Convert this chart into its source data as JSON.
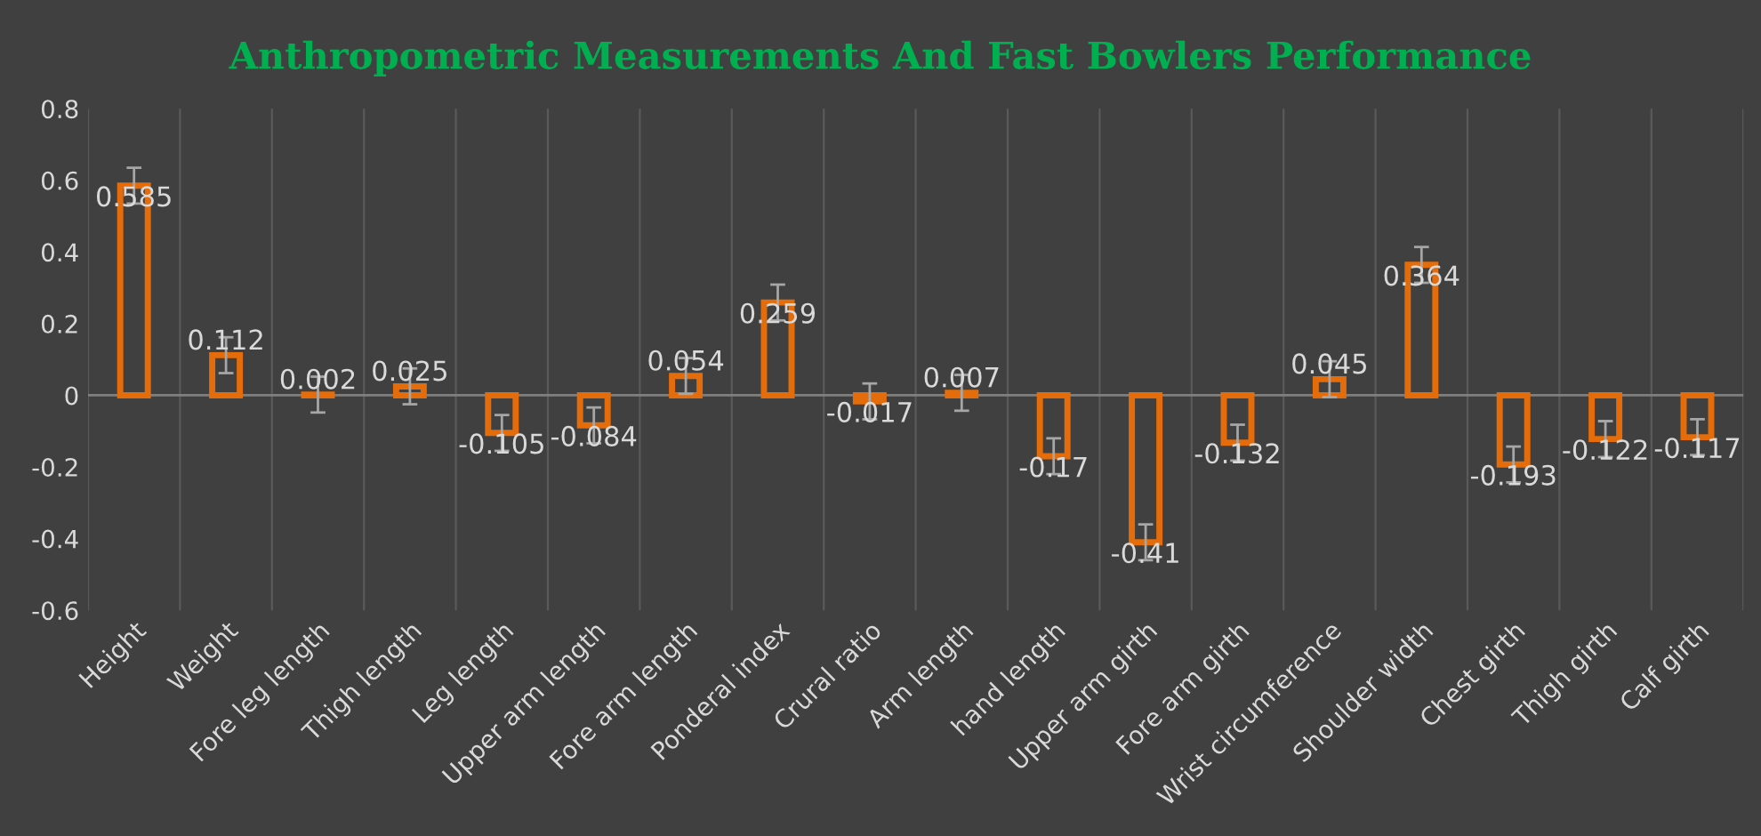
{
  "chart_data": {
    "type": "bar",
    "title": "Anthropometric Measurements And Fast Bowlers Performance",
    "categories": [
      "Height",
      "Weight",
      "Fore leg length",
      "Thigh length",
      "Leg length",
      "Upper arm length",
      "Fore arm length",
      "Ponderal index",
      "Crural ratio",
      "Arm length",
      "hand length",
      "Upper arm girth",
      "Fore arm girth",
      "Wrist circumference",
      "Shoulder width",
      "Chest girth",
      "Thigh girth",
      "Calf girth"
    ],
    "values": [
      0.585,
      0.112,
      0.002,
      0.025,
      -0.105,
      -0.084,
      0.054,
      0.259,
      -0.017,
      0.007,
      -0.17,
      -0.41,
      -0.132,
      0.045,
      0.364,
      -0.193,
      -0.122,
      -0.117
    ],
    "errors": [
      0.05,
      0.05,
      0.05,
      0.05,
      0.05,
      0.05,
      0.05,
      0.05,
      0.05,
      0.05,
      0.05,
      0.05,
      0.05,
      0.05,
      0.05,
      0.05,
      0.05,
      0.05
    ],
    "color": "#e46c0a",
    "ylim": [
      -0.6,
      0.8
    ],
    "yticks": [
      -0.6,
      -0.4,
      -0.2,
      0,
      0.2,
      0.4,
      0.6,
      0.8
    ],
    "grid": "x",
    "data_labels": true
  }
}
